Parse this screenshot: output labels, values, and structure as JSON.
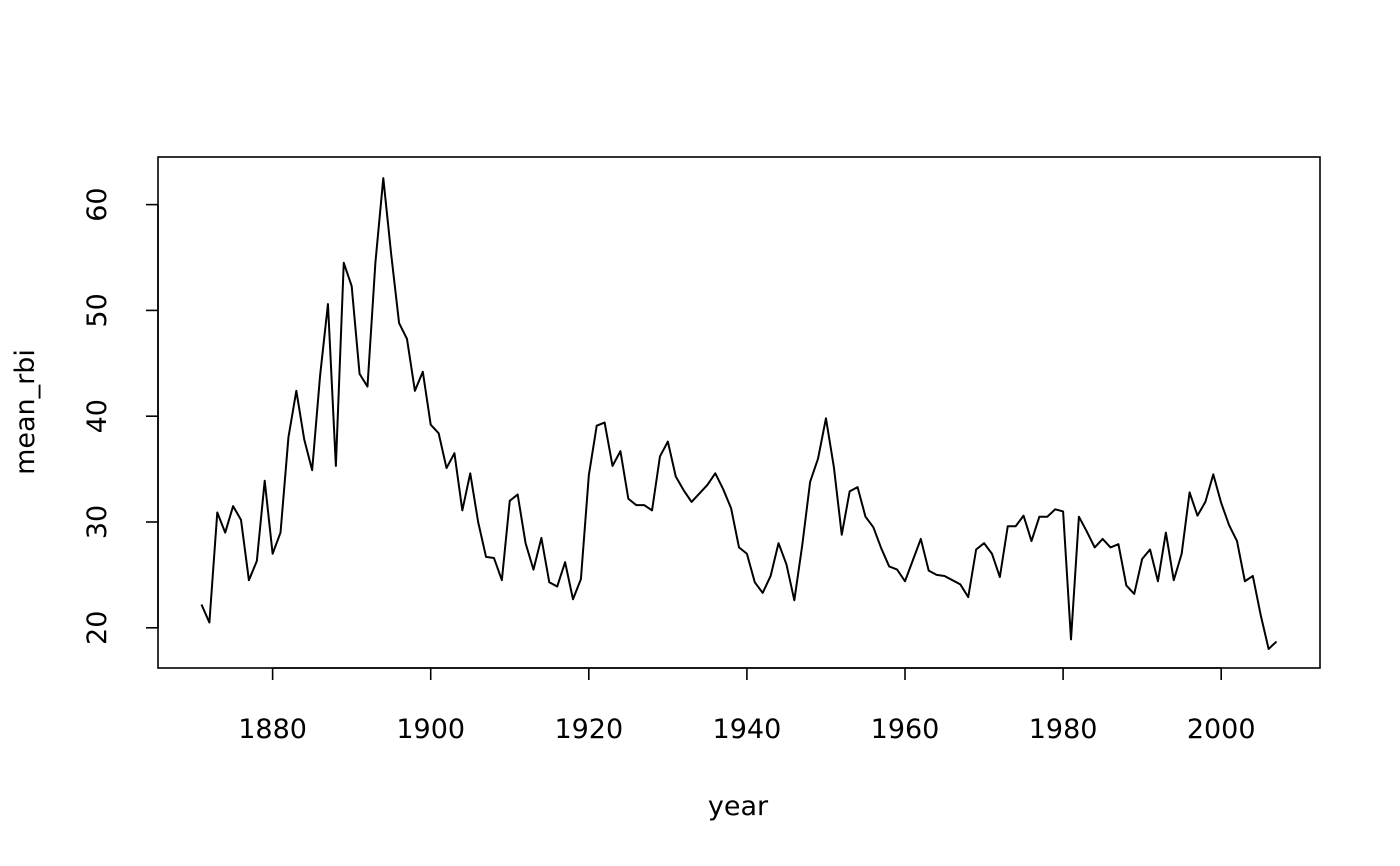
{
  "chart_data": {
    "type": "line",
    "title": "",
    "xlabel": "year",
    "ylabel": "mean_rbi",
    "xlim": [
      1865.5,
      2012.5
    ],
    "ylim": [
      16.2,
      64.5
    ],
    "xticks": [
      1880,
      1900,
      1920,
      1940,
      1960,
      1980,
      2000
    ],
    "yticks": [
      20,
      30,
      40,
      50,
      60
    ],
    "grid": false,
    "legend": "none",
    "line_color": "#000000",
    "series": [
      {
        "x": [
          1871,
          1872,
          1873,
          1874,
          1875,
          1876,
          1877,
          1878,
          1879,
          1880,
          1881,
          1882,
          1883,
          1884,
          1885,
          1886,
          1887,
          1888,
          1889,
          1890,
          1891,
          1892,
          1893,
          1894,
          1895,
          1896,
          1897,
          1898,
          1899,
          1900,
          1901,
          1902,
          1903,
          1904,
          1905,
          1906,
          1907,
          1908,
          1909,
          1910,
          1911,
          1912,
          1913,
          1914,
          1915,
          1916,
          1917,
          1918,
          1919,
          1920,
          1921,
          1922,
          1923,
          1924,
          1925,
          1926,
          1927,
          1928,
          1929,
          1930,
          1931,
          1932,
          1933,
          1934,
          1935,
          1936,
          1937,
          1938,
          1939,
          1940,
          1941,
          1942,
          1943,
          1944,
          1945,
          1946,
          1947,
          1948,
          1949,
          1950,
          1951,
          1952,
          1953,
          1954,
          1955,
          1956,
          1957,
          1958,
          1959,
          1960,
          1961,
          1962,
          1963,
          1964,
          1965,
          1966,
          1967,
          1968,
          1969,
          1970,
          1971,
          1972,
          1973,
          1974,
          1975,
          1976,
          1977,
          1978,
          1979,
          1980,
          1981,
          1982,
          1983,
          1984,
          1985,
          1986,
          1987,
          1988,
          1989,
          1990,
          1991,
          1992,
          1993,
          1994,
          1995,
          1996,
          1997,
          1998,
          1999,
          2000,
          2001,
          2002,
          2003,
          2004,
          2005,
          2006,
          2007
        ],
        "values": [
          22.2,
          20.5,
          30.9,
          29.0,
          31.5,
          30.2,
          24.5,
          26.3,
          33.9,
          27.0,
          29.0,
          38.0,
          42.4,
          37.8,
          34.9,
          43.8,
          50.6,
          35.3,
          54.5,
          52.3,
          44.0,
          42.8,
          54.5,
          62.5,
          55.3,
          48.8,
          47.3,
          42.4,
          44.2,
          39.2,
          38.4,
          35.1,
          36.5,
          31.1,
          34.6,
          30.0,
          26.7,
          26.6,
          24.5,
          32.0,
          32.6,
          28.0,
          25.5,
          28.5,
          24.3,
          23.9,
          26.2,
          22.7,
          24.6,
          34.4,
          39.1,
          39.4,
          35.3,
          36.7,
          32.2,
          31.6,
          31.6,
          31.1,
          36.2,
          37.6,
          34.3,
          33.0,
          31.9,
          32.7,
          33.5,
          34.6,
          33.1,
          31.3,
          27.6,
          27.0,
          24.3,
          23.3,
          24.9,
          28.0,
          26.0,
          22.6,
          27.8,
          33.8,
          36.0,
          39.8,
          35.2,
          28.8,
          32.9,
          33.3,
          30.5,
          29.5,
          27.5,
          25.8,
          25.5,
          24.4,
          26.4,
          28.4,
          25.4,
          25.0,
          24.9,
          24.5,
          24.1,
          22.9,
          27.4,
          28.0,
          27.0,
          24.8,
          29.6,
          29.6,
          30.6,
          28.2,
          30.5,
          30.5,
          31.2,
          31.0,
          18.9,
          30.5,
          29.1,
          27.6,
          28.4,
          27.6,
          27.9,
          24.0,
          23.2,
          26.5,
          27.4,
          24.4,
          29.0,
          24.5,
          27.0,
          32.8,
          30.6,
          31.9,
          34.5,
          31.8,
          29.7,
          28.2,
          24.4,
          24.9,
          21.2,
          18.0,
          18.7
        ]
      }
    ]
  }
}
